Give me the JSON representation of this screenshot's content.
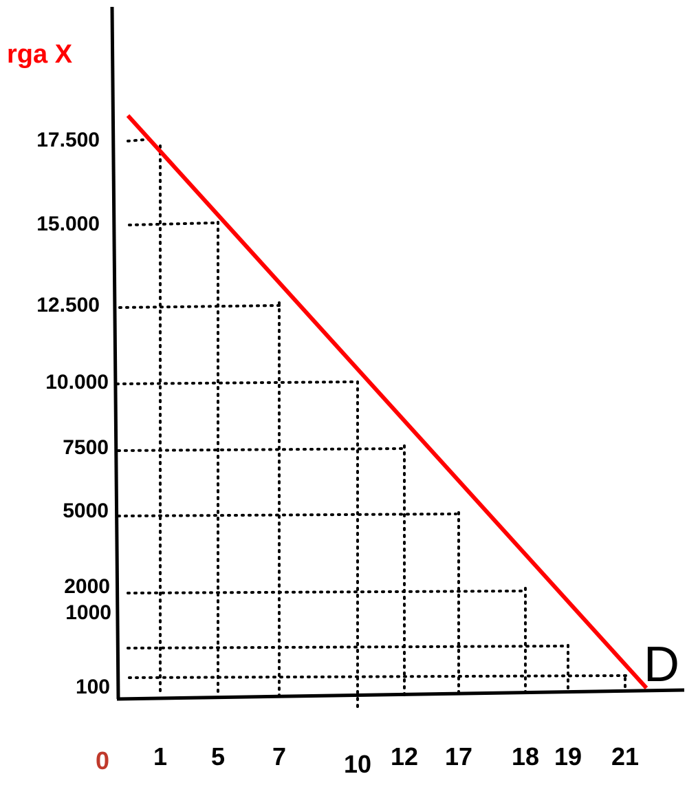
{
  "chart_data": {
    "type": "line",
    "ylabel": "rga X",
    "origin_label": "0",
    "curve_label": "D",
    "x_ticks": [
      "1",
      "5",
      "7",
      "10",
      "12",
      "17",
      "18",
      "19",
      "21"
    ],
    "y_ticks": [
      "100",
      "1000",
      "2000",
      "5000",
      "7500",
      "10.000",
      "12.500",
      "15.000",
      "17.500"
    ],
    "points": [
      {
        "x": "1",
        "y": "17.500"
      },
      {
        "x": "5",
        "y": "15.000"
      },
      {
        "x": "7",
        "y": "12.500"
      },
      {
        "x": "10",
        "y": "10.000"
      },
      {
        "x": "12",
        "y": "7500"
      },
      {
        "x": "17",
        "y": "5000"
      },
      {
        "x": "18",
        "y": "2000"
      },
      {
        "x": "19",
        "y": "1000"
      },
      {
        "x": "21",
        "y": "100"
      }
    ],
    "series": [
      {
        "values": [
          17500,
          15000,
          12500,
          10000,
          7500,
          5000,
          2000,
          1000,
          100
        ]
      }
    ],
    "grid": "dotted guide lines from each point to both axes",
    "colors": {
      "line": "#ff0000",
      "axis": "#000000",
      "origin": "#c0392b",
      "ylabel": "#ff0000"
    }
  }
}
